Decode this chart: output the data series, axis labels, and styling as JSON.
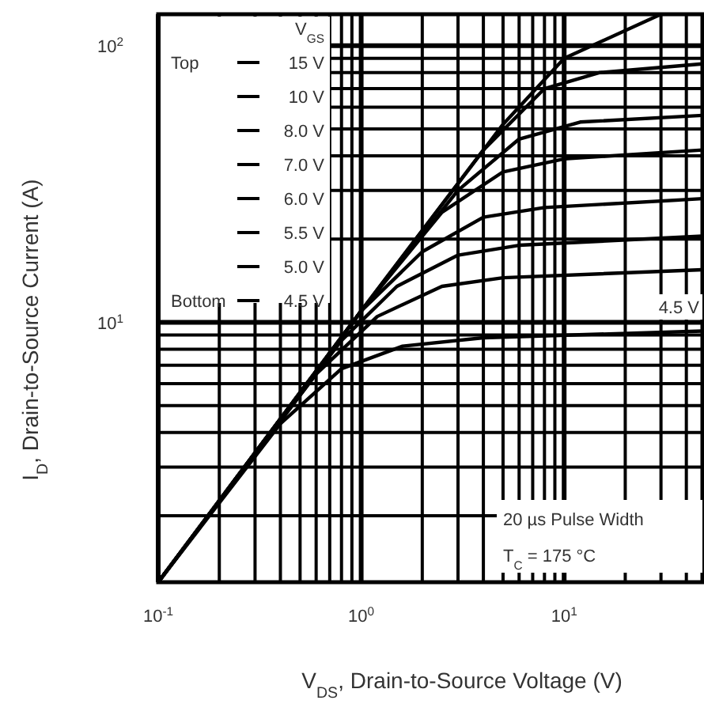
{
  "chart_data": {
    "type": "line",
    "xlabel": "V$_{DS}$, Drain-to-Source Voltage (V)",
    "ylabel": "I$_{D}$, Drain-to-Source Current (A)",
    "legend_title": "V$_{GS}$",
    "legend": "top left",
    "log": "xy",
    "grid": true,
    "marker": "none",
    "line_style": "solid",
    "xlim": [
      0.1,
      48
    ],
    "ylim": [
      1.15,
      130
    ],
    "xticks": [
      {
        "value": 0.1,
        "label": "10$^{-1}$"
      },
      {
        "value": 0.2,
        "label": null
      },
      {
        "value": 0.3,
        "label": null
      },
      {
        "value": 0.4,
        "label": null
      },
      {
        "value": 0.5,
        "label": null
      },
      {
        "value": 0.6,
        "label": null
      },
      {
        "value": 0.7,
        "label": null
      },
      {
        "value": 0.8,
        "label": null
      },
      {
        "value": 0.9,
        "label": null
      },
      {
        "value": 1,
        "label": "10$^{0}$"
      },
      {
        "value": 2,
        "label": null
      },
      {
        "value": 3,
        "label": null
      },
      {
        "value": 4,
        "label": null
      },
      {
        "value": 5,
        "label": null
      },
      {
        "value": 6,
        "label": null
      },
      {
        "value": 7,
        "label": null
      },
      {
        "value": 8,
        "label": null
      },
      {
        "value": 9,
        "label": null
      },
      {
        "value": 10,
        "label": "10$^{1}$"
      },
      {
        "value": 20,
        "label": null
      },
      {
        "value": 30,
        "label": null
      },
      {
        "value": 40,
        "label": null
      }
    ],
    "yticks": [
      {
        "value": 2,
        "label": null
      },
      {
        "value": 3,
        "label": null
      },
      {
        "value": 4,
        "label": null
      },
      {
        "value": 5,
        "label": null
      },
      {
        "value": 6,
        "label": null
      },
      {
        "value": 7,
        "label": null
      },
      {
        "value": 8,
        "label": null
      },
      {
        "value": 9,
        "label": null
      },
      {
        "value": 10,
        "label": "10$^{1}$"
      },
      {
        "value": 20,
        "label": null
      },
      {
        "value": 30,
        "label": null
      },
      {
        "value": 40,
        "label": null
      },
      {
        "value": 50,
        "label": null
      },
      {
        "value": 60,
        "label": null
      },
      {
        "value": 70,
        "label": null
      },
      {
        "value": 80,
        "label": null
      },
      {
        "value": 90,
        "label": null
      },
      {
        "value": 100,
        "label": "10$^{2}$"
      }
    ],
    "series": [
      {
        "name": "15 V",
        "color": "#000000",
        "x": [
          0.1,
          1,
          5,
          10,
          30
        ],
        "values": [
          1.15,
          11,
          52,
          90,
          130
        ]
      },
      {
        "name": "10 V",
        "color": "#000000",
        "x": [
          0.1,
          1,
          4,
          8,
          15,
          48
        ],
        "values": [
          1.15,
          11,
          42,
          70,
          80,
          86
        ]
      },
      {
        "name": "8.0 V",
        "color": "#000000",
        "x": [
          0.1,
          1,
          3,
          6,
          12,
          48
        ],
        "values": [
          1.15,
          11,
          30,
          46,
          53,
          56
        ]
      },
      {
        "name": "7.0 V",
        "color": "#000000",
        "x": [
          0.1,
          1,
          2.5,
          5,
          10,
          48
        ],
        "values": [
          1.15,
          11,
          25,
          35,
          39,
          42
        ]
      },
      {
        "name": "6.0 V",
        "color": "#000000",
        "x": [
          0.1,
          1,
          2,
          4,
          8,
          48
        ],
        "values": [
          1.15,
          11,
          18,
          24,
          26,
          28
        ]
      },
      {
        "name": "5.5 V",
        "color": "#000000",
        "x": [
          0.1,
          0.8,
          1.5,
          3,
          6,
          48
        ],
        "values": [
          1.15,
          8.6,
          13.5,
          17.5,
          19,
          20.5
        ]
      },
      {
        "name": "5.0 V",
        "color": "#000000",
        "x": [
          0.1,
          0.6,
          1.2,
          2.5,
          5,
          48
        ],
        "values": [
          1.15,
          6.5,
          10.5,
          13.5,
          14.5,
          15.5
        ]
      },
      {
        "name": "4.5 V",
        "color": "#000000",
        "x": [
          0.1,
          0.4,
          0.8,
          1.6,
          4,
          48
        ],
        "values": [
          1.15,
          4.3,
          6.8,
          8.2,
          8.8,
          9.3
        ]
      }
    ],
    "annotations": [
      "Top",
      "Bottom",
      "4.5 V",
      "20 µs Pulse Width",
      "T$_{C}$ = 175 °C"
    ]
  }
}
